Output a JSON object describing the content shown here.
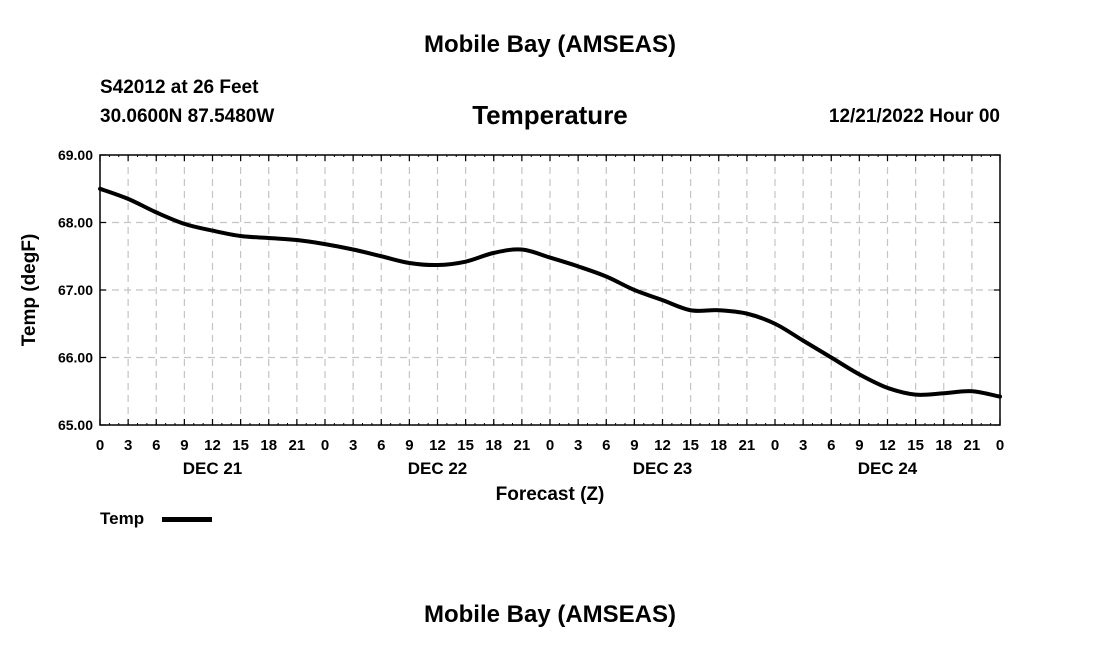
{
  "header": {
    "title": "Mobile Bay (AMSEAS)",
    "footer_title": "Mobile Bay (AMSEAS)",
    "station_line": "S42012 at 26 Feet",
    "coords_line": "30.0600N  87.5480W",
    "datetime": "12/21/2022 Hour 00"
  },
  "legend": {
    "label": "Temp",
    "color": "#000000"
  },
  "chart_data": {
    "type": "line",
    "title": "Temperature",
    "xlabel": "Forecast (Z)",
    "ylabel": "Temp (degF)",
    "ylim": [
      65.0,
      69.0
    ],
    "yticks": [
      "65.00",
      "66.00",
      "67.00",
      "68.00",
      "69.00"
    ],
    "xlim": [
      0,
      96
    ],
    "x_tick_step_hours": 3,
    "x_tick_labels": [
      "0",
      "3",
      "6",
      "9",
      "12",
      "15",
      "18",
      "21",
      "0",
      "3",
      "6",
      "9",
      "12",
      "15",
      "18",
      "21",
      "0",
      "3",
      "6",
      "9",
      "12",
      "15",
      "18",
      "21",
      "0",
      "3",
      "6",
      "9",
      "12",
      "15",
      "18",
      "21",
      "0"
    ],
    "day_labels": [
      {
        "label": "DEC 21",
        "hour": 12
      },
      {
        "label": "DEC 22",
        "hour": 36
      },
      {
        "label": "DEC 23",
        "hour": 60
      },
      {
        "label": "DEC 24",
        "hour": 84
      }
    ],
    "grid": true,
    "series": [
      {
        "name": "Temp",
        "color": "#000000",
        "x": [
          0,
          3,
          6,
          9,
          12,
          15,
          18,
          21,
          24,
          27,
          30,
          33,
          36,
          39,
          42,
          45,
          48,
          51,
          54,
          57,
          60,
          63,
          66,
          69,
          72,
          75,
          78,
          81,
          84,
          87,
          90,
          93,
          96
        ],
        "y": [
          68.5,
          68.35,
          68.15,
          67.98,
          67.88,
          67.8,
          67.77,
          67.74,
          67.68,
          67.6,
          67.5,
          67.4,
          67.37,
          67.42,
          67.55,
          67.6,
          67.48,
          67.35,
          67.2,
          67.0,
          66.85,
          66.7,
          66.7,
          66.65,
          66.5,
          66.25,
          66.0,
          65.75,
          65.55,
          65.45,
          65.47,
          65.5,
          65.42
        ]
      }
    ]
  }
}
